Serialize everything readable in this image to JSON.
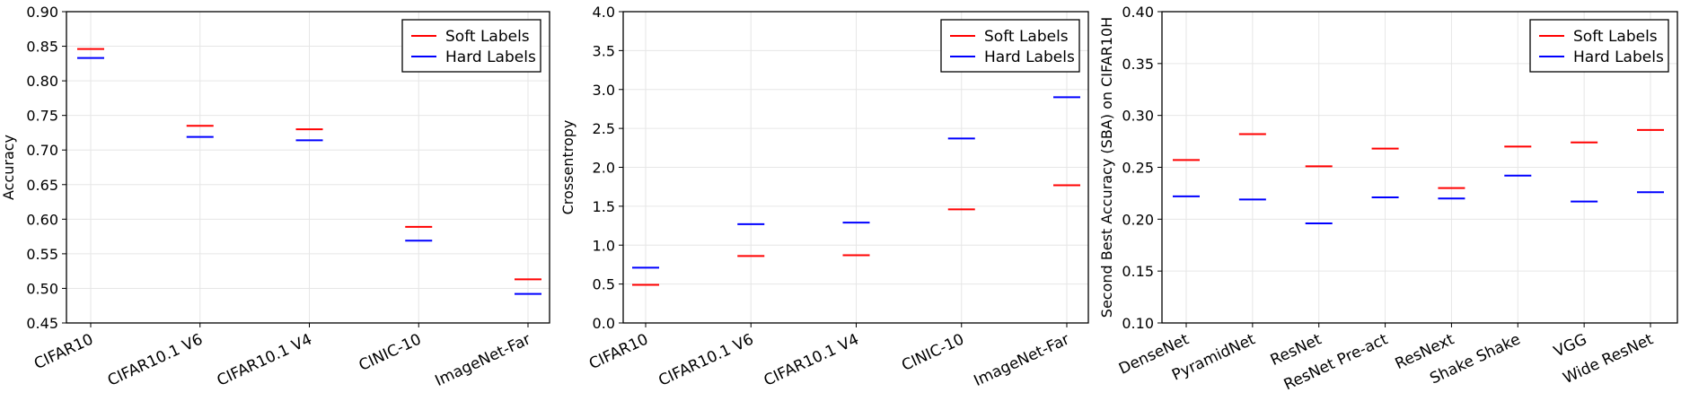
{
  "legend_labels": [
    "Soft Labels",
    "Hard Labels"
  ],
  "colors": {
    "soft": "#ff0000",
    "hard": "#0000ff",
    "grid": "#e6e6e6",
    "axis": "#000000"
  },
  "chart_data": [
    {
      "type": "scatter",
      "marker": "horizontal-dash",
      "ylabel": "Accuracy",
      "xlabel": "",
      "categories": [
        "CIFAR10",
        "CIFAR10.1 V6",
        "CIFAR10.1 V4",
        "CINIC-10",
        "ImageNet-Far"
      ],
      "series": [
        {
          "name": "Soft Labels",
          "color": "#ff0000",
          "values": [
            0.846,
            0.735,
            0.73,
            0.589,
            0.513
          ]
        },
        {
          "name": "Hard Labels",
          "color": "#0000ff",
          "values": [
            0.833,
            0.719,
            0.714,
            0.569,
            0.492
          ]
        }
      ],
      "ylim": [
        0.45,
        0.9
      ],
      "yticks": [
        "0.45",
        "0.50",
        "0.55",
        "0.60",
        "0.65",
        "0.70",
        "0.75",
        "0.80",
        "0.85",
        "0.90"
      ],
      "grid": true,
      "legend": "top-right"
    },
    {
      "type": "scatter",
      "marker": "horizontal-dash",
      "ylabel": "Crossentropy",
      "xlabel": "",
      "categories": [
        "CIFAR10",
        "CIFAR10.1 V6",
        "CIFAR10.1 V4",
        "CINIC-10",
        "ImageNet-Far"
      ],
      "series": [
        {
          "name": "Soft Labels",
          "color": "#ff0000",
          "values": [
            0.49,
            0.86,
            0.87,
            1.46,
            1.77
          ]
        },
        {
          "name": "Hard Labels",
          "color": "#0000ff",
          "values": [
            0.71,
            1.27,
            1.29,
            2.37,
            2.9
          ]
        }
      ],
      "ylim": [
        0.0,
        4.0
      ],
      "yticks": [
        "0.0",
        "0.5",
        "1.0",
        "1.5",
        "2.0",
        "2.5",
        "3.0",
        "3.5",
        "4.0"
      ],
      "grid": true,
      "legend": "top-right"
    },
    {
      "type": "scatter",
      "marker": "horizontal-dash",
      "ylabel": "Second Best Accuracy (SBA) on CIFAR10H",
      "xlabel": "",
      "categories": [
        "DenseNet",
        "PyramidNet",
        "ResNet",
        "ResNet Pre-act",
        "ResNext",
        "Shake Shake",
        "VGG",
        "Wide ResNet"
      ],
      "series": [
        {
          "name": "Soft Labels",
          "color": "#ff0000",
          "values": [
            0.257,
            0.282,
            0.251,
            0.268,
            0.23,
            0.27,
            0.274,
            0.286
          ]
        },
        {
          "name": "Hard Labels",
          "color": "#0000ff",
          "values": [
            0.222,
            0.219,
            0.196,
            0.221,
            0.22,
            0.242,
            0.217,
            0.226
          ]
        }
      ],
      "ylim": [
        0.1,
        0.4
      ],
      "yticks": [
        "0.10",
        "0.15",
        "0.20",
        "0.25",
        "0.30",
        "0.35",
        "0.40"
      ],
      "grid": true,
      "legend": "top-right"
    }
  ]
}
